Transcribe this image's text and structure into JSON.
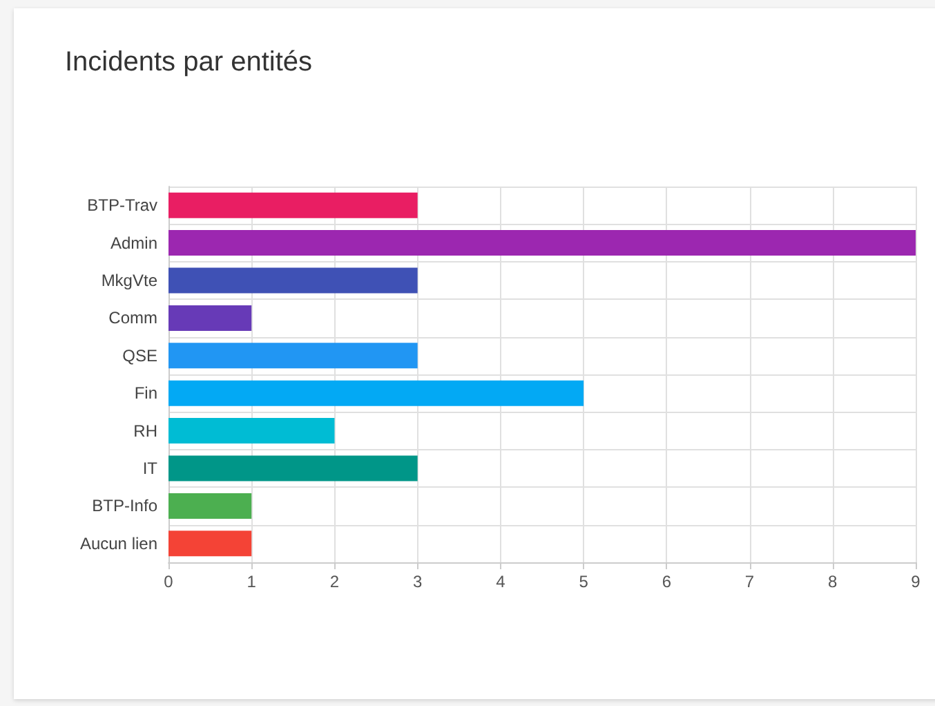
{
  "chart_data": {
    "type": "bar",
    "title": "Incidents par entités",
    "orientation": "horizontal",
    "categories": [
      "BTP-Trav",
      "Admin",
      "MkgVte",
      "Comm",
      "QSE",
      "Fin",
      "RH",
      "IT",
      "BTP-Info",
      "Aucun lien"
    ],
    "values": [
      3,
      9,
      3,
      1,
      3,
      5,
      2,
      3,
      1,
      1
    ],
    "colors": [
      "#e91e63",
      "#9c27b0",
      "#3f51b5",
      "#673ab7",
      "#2196f3",
      "#03a9f4",
      "#00bcd4",
      "#009688",
      "#4caf50",
      "#f44336"
    ],
    "xlim": [
      0,
      9
    ],
    "xticks": [
      0,
      1,
      2,
      3,
      4,
      5,
      6,
      7,
      8,
      9
    ],
    "grid": true
  }
}
